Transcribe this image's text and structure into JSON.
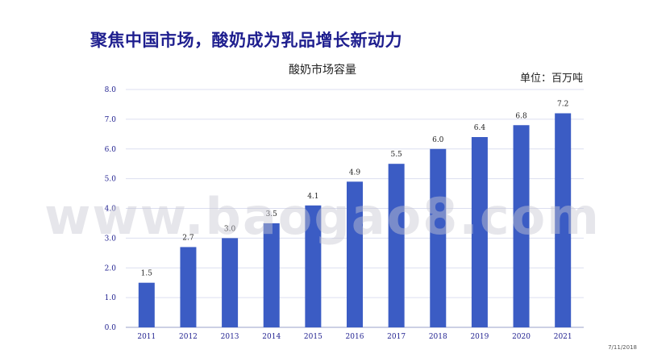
{
  "slide": {
    "title": "聚焦中国市场，酸奶成为乳品增长新动力",
    "footer_date": "7/11/2018"
  },
  "watermark": "www.baogao8.com",
  "chart_data": {
    "type": "bar",
    "title": "酸奶市场容量",
    "unit_label": "单位：百万吨",
    "categories": [
      "2011",
      "2012",
      "2013",
      "2014",
      "2015",
      "2016",
      "2017",
      "2018",
      "2019",
      "2020",
      "2021"
    ],
    "values": [
      1.5,
      2.7,
      3.0,
      3.5,
      4.1,
      4.9,
      5.5,
      6.0,
      6.4,
      6.8,
      7.2
    ],
    "data_labels": [
      "1.5",
      "2.7",
      "3.0",
      "3.5",
      "4.1",
      "4.9",
      "5.5",
      "6.0",
      "6.4",
      "6.8",
      "7.2"
    ],
    "ylim": [
      0,
      8
    ],
    "yticks": [
      "0.0",
      "1.0",
      "2.0",
      "3.0",
      "4.0",
      "5.0",
      "6.0",
      "7.0",
      "8.0"
    ],
    "grid": true,
    "bar_color": "#3b5cc4"
  }
}
